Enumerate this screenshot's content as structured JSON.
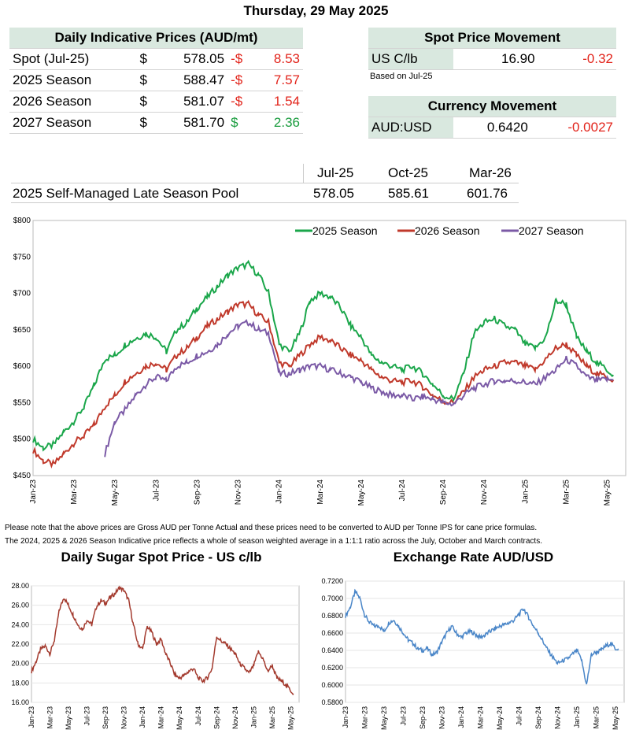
{
  "date_title": "Thursday, 29 May 2025",
  "daily_prices": {
    "heading": "Daily Indicative Prices (AUD/mt)",
    "rows": [
      {
        "label": "Spot (Jul-25)",
        "cur": "$",
        "price": "578.05",
        "chg_sign": "-$",
        "chg": "8.53",
        "dir": "neg"
      },
      {
        "label": "2025 Season",
        "cur": "$",
        "price": "588.47",
        "chg_sign": "-$",
        "chg": "7.57",
        "dir": "neg"
      },
      {
        "label": "2026 Season",
        "cur": "$",
        "price": "581.07",
        "chg_sign": "-$",
        "chg": "1.54",
        "dir": "neg"
      },
      {
        "label": "2027 Season",
        "cur": "$",
        "price": "581.70",
        "chg_sign": "$",
        "chg": "2.36",
        "dir": "pos"
      }
    ]
  },
  "spot_movement": {
    "heading": "Spot Price Movement",
    "label": "US C/lb",
    "value": "16.90",
    "change": "-0.32",
    "note": "Based on Jul-25"
  },
  "currency_movement": {
    "heading": "Currency Movement",
    "label": "AUD:USD",
    "value": "0.6420",
    "change": "-0.0027"
  },
  "pool": {
    "headers": [
      "Jul-25",
      "Oct-25",
      "Mar-26"
    ],
    "label": "2025 Self-Managed Late Season Pool",
    "values": [
      "578.05",
      "585.61",
      "601.76"
    ]
  },
  "notes": [
    "Please note that the above prices are Gross AUD per Tonne Actual and these prices need to be converted to AUD per Tonne IPS for cane price formulas.",
    "The 2024, 2025 & 2026 Season Indicative price reflects a whole of season weighted average in a 1:1:1 ratio across the July, October and March contracts."
  ],
  "colors": {
    "s2025": "#1aa64a",
    "s2026": "#c0392b",
    "s2027": "#7b5aa6",
    "sugar": "#a33a2e",
    "fx": "#4a86c8",
    "hdr": "#d9e8df"
  },
  "chart_data": [
    {
      "type": "line",
      "title": "",
      "ylim": [
        450,
        800
      ],
      "yticks": [
        "$450",
        "$500",
        "$550",
        "$600",
        "$650",
        "$700",
        "$750",
        "$800"
      ],
      "xticks": [
        "Jan-23",
        "Mar-23",
        "May-23",
        "Jul-23",
        "Sep-23",
        "Nov-23",
        "Jan-24",
        "Mar-24",
        "May-24",
        "Jul-24",
        "Sep-24",
        "Nov-24",
        "Jan-25",
        "Mar-25",
        "May-25"
      ],
      "series": [
        {
          "name": "2025 Season",
          "key": "s2025",
          "x": [
            0,
            0.5,
            1,
            1.5,
            2,
            2.5,
            3,
            3.5,
            4,
            4.5,
            5,
            5.5,
            6,
            6.5,
            7,
            7.5,
            8,
            8.5,
            9,
            9.5,
            10,
            10.5,
            11,
            11.5,
            12,
            12.5,
            13,
            13.5,
            14,
            14.5,
            15,
            15.5,
            16,
            16.5,
            17,
            17.5,
            18,
            18.5,
            19,
            19.5,
            20,
            20.5,
            21,
            21.5,
            22,
            22.5,
            23,
            23.5,
            24,
            24.5,
            25,
            25.5,
            26,
            26.5,
            27,
            27.5,
            28,
            28.3
          ],
          "values": [
            500,
            488,
            492,
            510,
            525,
            545,
            575,
            610,
            615,
            630,
            638,
            645,
            640,
            620,
            650,
            660,
            680,
            695,
            710,
            725,
            735,
            740,
            725,
            700,
            630,
            620,
            645,
            690,
            700,
            695,
            680,
            655,
            640,
            615,
            605,
            600,
            595,
            600,
            590,
            575,
            560,
            555,
            590,
            645,
            660,
            665,
            655,
            650,
            630,
            625,
            640,
            690,
            685,
            640,
            620,
            605,
            595,
            588
          ]
        },
        {
          "name": "2026 Season",
          "key": "s2026",
          "x": [
            0,
            0.5,
            1,
            1.5,
            2,
            2.5,
            3,
            3.5,
            4,
            4.5,
            5,
            5.5,
            6,
            6.5,
            7,
            7.5,
            8,
            8.5,
            9,
            9.5,
            10,
            10.5,
            11,
            11.5,
            12,
            12.5,
            13,
            13.5,
            14,
            14.5,
            15,
            15.5,
            16,
            16.5,
            17,
            17.5,
            18,
            18.5,
            19,
            19.5,
            20,
            20.5,
            21,
            21.5,
            22,
            22.5,
            23,
            23.5,
            24,
            24.5,
            25,
            25.5,
            26,
            26.5,
            27,
            27.5,
            28,
            28.3
          ],
          "values": [
            485,
            470,
            465,
            480,
            495,
            505,
            520,
            545,
            560,
            580,
            590,
            600,
            605,
            595,
            615,
            625,
            640,
            655,
            665,
            675,
            685,
            685,
            670,
            660,
            605,
            600,
            615,
            630,
            640,
            635,
            625,
            615,
            608,
            595,
            585,
            580,
            578,
            580,
            572,
            560,
            552,
            550,
            565,
            585,
            595,
            600,
            605,
            605,
            600,
            595,
            610,
            625,
            630,
            615,
            600,
            590,
            585,
            581
          ]
        },
        {
          "name": "2027 Season",
          "key": "s2027",
          "x": [
            3.5,
            4,
            4.5,
            5,
            5.5,
            6,
            6.5,
            7,
            7.5,
            8,
            8.5,
            9,
            9.5,
            10,
            10.5,
            11,
            11.5,
            12,
            12.5,
            13,
            13.5,
            14,
            14.5,
            15,
            15.5,
            16,
            16.5,
            17,
            17.5,
            18,
            18.5,
            19,
            19.5,
            20,
            20.5,
            21,
            21.5,
            22,
            22.5,
            23,
            23.5,
            24,
            24.5,
            25,
            25.5,
            26,
            26.5,
            27,
            27.5,
            28,
            28.3
          ],
          "values": [
            480,
            525,
            540,
            560,
            575,
            585,
            580,
            600,
            605,
            615,
            620,
            630,
            645,
            655,
            660,
            650,
            645,
            590,
            590,
            595,
            600,
            600,
            595,
            590,
            585,
            578,
            570,
            565,
            560,
            560,
            555,
            558,
            555,
            550,
            548,
            560,
            570,
            575,
            580,
            580,
            580,
            578,
            575,
            585,
            595,
            610,
            600,
            585,
            580,
            582,
            581
          ]
        }
      ]
    },
    {
      "type": "line",
      "title": "Daily Sugar Spot Price - US c/lb",
      "ylim": [
        16,
        28
      ],
      "yticks": [
        "16.00",
        "18.00",
        "20.00",
        "22.00",
        "24.00",
        "26.00",
        "28.00"
      ],
      "xticks": [
        "Jan-23",
        "Mar-23",
        "May-23",
        "Jul-23",
        "Sep-23",
        "Nov-23",
        "Jan-24",
        "Mar-24",
        "May-24",
        "Jul-24",
        "Sep-24",
        "Nov-24",
        "Jan-25",
        "Mar-25",
        "May-25"
      ],
      "x": [
        0,
        0.5,
        1,
        1.5,
        2,
        2.5,
        3,
        3.5,
        4,
        4.5,
        5,
        5.5,
        6,
        6.5,
        7,
        7.5,
        8,
        8.5,
        9,
        9.5,
        10,
        10.5,
        11,
        11.5,
        12,
        12.5,
        13,
        13.5,
        14,
        14.5,
        15,
        15.5,
        16,
        16.5,
        17,
        17.5,
        18,
        18.5,
        19,
        19.5,
        20,
        20.5,
        21,
        21.5,
        22,
        22.5,
        23,
        23.5,
        24,
        24.5,
        25,
        25.5,
        26,
        26.5,
        27,
        27.5,
        28,
        28.3
      ],
      "values": [
        19.2,
        20.2,
        21.5,
        21.8,
        21.0,
        22.5,
        25.5,
        26.8,
        26.0,
        25.0,
        24.0,
        23.5,
        24.5,
        24.0,
        25.8,
        26.5,
        26.2,
        26.8,
        27.2,
        27.8,
        27.5,
        26.5,
        24.0,
        22.0,
        21.5,
        23.8,
        23.2,
        22.0,
        22.5,
        21.0,
        20.0,
        18.8,
        18.5,
        18.8,
        19.2,
        19.5,
        18.5,
        18.2,
        18.5,
        19.5,
        22.8,
        22.3,
        22.0,
        21.5,
        21.0,
        20.0,
        19.5,
        19.0,
        19.8,
        21.2,
        20.5,
        19.2,
        19.8,
        18.5,
        18.2,
        17.8,
        17.2,
        16.9
      ],
      "color_key": "sugar"
    },
    {
      "type": "line",
      "title": "Exchange Rate AUD/USD",
      "ylim": [
        0.58,
        0.72
      ],
      "yticks": [
        "0.5800",
        "0.6000",
        "0.6200",
        "0.6400",
        "0.6600",
        "0.6800",
        "0.7000",
        "0.7200"
      ],
      "xticks": [
        "Jan-23",
        "Mar-23",
        "May-23",
        "Jul-23",
        "Sep-23",
        "Nov-23",
        "Jan-24",
        "Mar-24",
        "May-24",
        "Jul-24",
        "Sep-24",
        "Nov-24",
        "Jan-25",
        "Mar-25",
        "May-25"
      ],
      "x": [
        0,
        0.5,
        1,
        1.5,
        2,
        2.5,
        3,
        3.5,
        4,
        4.5,
        5,
        5.5,
        6,
        6.5,
        7,
        7.5,
        8,
        8.5,
        9,
        9.5,
        10,
        10.5,
        11,
        11.5,
        12,
        12.5,
        13,
        13.5,
        14,
        14.5,
        15,
        15.5,
        16,
        16.5,
        17,
        17.5,
        18,
        18.5,
        19,
        19.5,
        20,
        20.5,
        21,
        21.5,
        22,
        22.5,
        23,
        23.5,
        24,
        24.5,
        25,
        25.5,
        26,
        26.5,
        27,
        27.5,
        28,
        28.3
      ],
      "values": [
        0.68,
        0.69,
        0.708,
        0.7,
        0.68,
        0.672,
        0.668,
        0.668,
        0.662,
        0.672,
        0.675,
        0.668,
        0.66,
        0.652,
        0.648,
        0.642,
        0.64,
        0.642,
        0.635,
        0.638,
        0.65,
        0.66,
        0.668,
        0.66,
        0.655,
        0.66,
        0.662,
        0.658,
        0.655,
        0.658,
        0.662,
        0.665,
        0.668,
        0.67,
        0.672,
        0.675,
        0.682,
        0.688,
        0.678,
        0.668,
        0.66,
        0.65,
        0.64,
        0.632,
        0.625,
        0.628,
        0.63,
        0.635,
        0.64,
        0.628,
        0.6,
        0.635,
        0.638,
        0.64,
        0.645,
        0.648,
        0.642,
        0.642
      ],
      "color_key": "fx"
    }
  ]
}
